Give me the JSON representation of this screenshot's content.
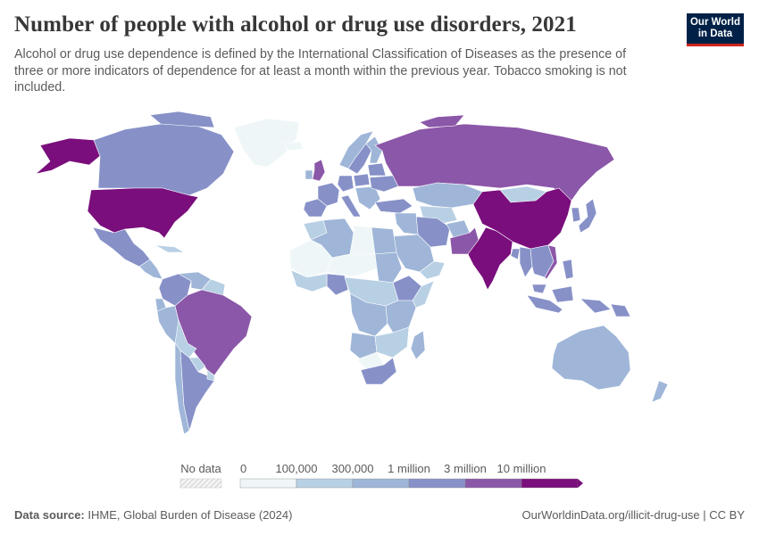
{
  "title": "Number of people with alcohol or drug use disorders, 2021",
  "subtitle": "Alcohol or drug use dependence is defined by the International Classification of Diseases as the presence of three or more indicators of dependence for at least a month within the previous year. Tobacco smoking is not included.",
  "logo": {
    "line1": "Our World",
    "line2": "in Data"
  },
  "legend": {
    "no_data_label": "No data",
    "bins": [
      {
        "label": "0",
        "color": "#eef6f8"
      },
      {
        "label": "100,000",
        "color": "#b8d0e4"
      },
      {
        "label": "300,000",
        "color": "#9fb6d8"
      },
      {
        "label": "1 million",
        "color": "#8791c8"
      },
      {
        "label": "3 million",
        "color": "#8b57a8"
      },
      {
        "label": "10 million",
        "color": "#7a0e7c"
      }
    ]
  },
  "footer": {
    "source_label": "Data source:",
    "source_text": "IHME, Global Burden of Disease (2024)",
    "url": "OurWorldinData.org/illicit-drug-use | CC BY"
  }
}
